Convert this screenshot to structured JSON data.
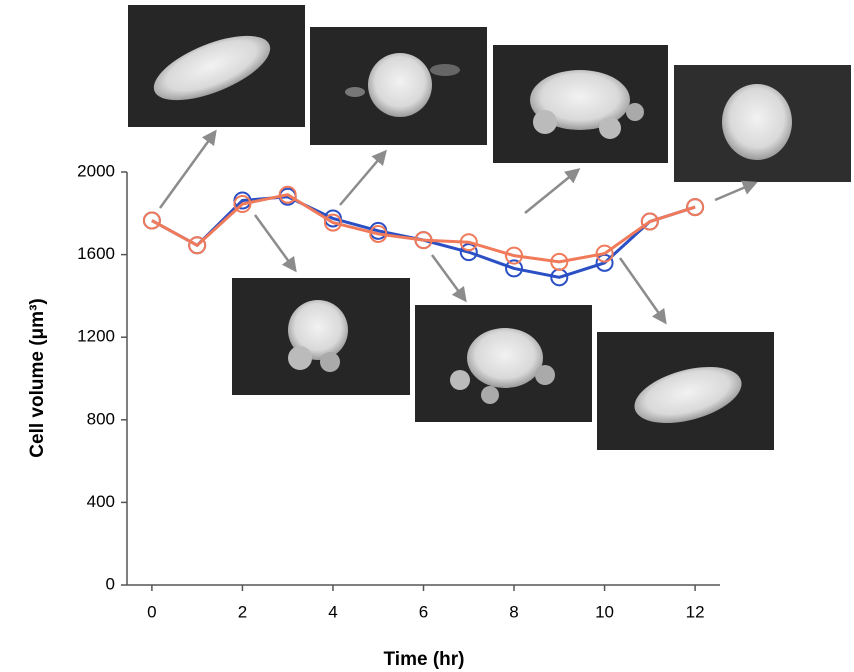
{
  "chart_data": {
    "type": "line",
    "x": [
      0,
      1,
      2,
      3,
      4,
      5,
      6,
      7,
      8,
      9,
      10,
      11,
      12
    ],
    "series": [
      {
        "color": "#2b4fc4",
        "values": [
          1765,
          1645,
          1862,
          1880,
          1775,
          1715,
          1670,
          1612,
          1533,
          1490,
          1560,
          1760,
          1830
        ]
      },
      {
        "color": "#f07a5a",
        "values": [
          1765,
          1645,
          1845,
          1890,
          1755,
          1700,
          1670,
          1660,
          1595,
          1565,
          1605,
          1760,
          1830
        ]
      }
    ],
    "xlim": [
      -0.55,
      12.55
    ],
    "xticks": [
      0,
      2,
      4,
      6,
      8,
      10,
      12
    ],
    "ylim": [
      0,
      2000
    ],
    "yticks": [
      0,
      400,
      800,
      1200,
      1600,
      2000
    ],
    "xlabel": "Time (hr)",
    "ylabel": "Cell volume (μm³)",
    "grid": false
  }
}
